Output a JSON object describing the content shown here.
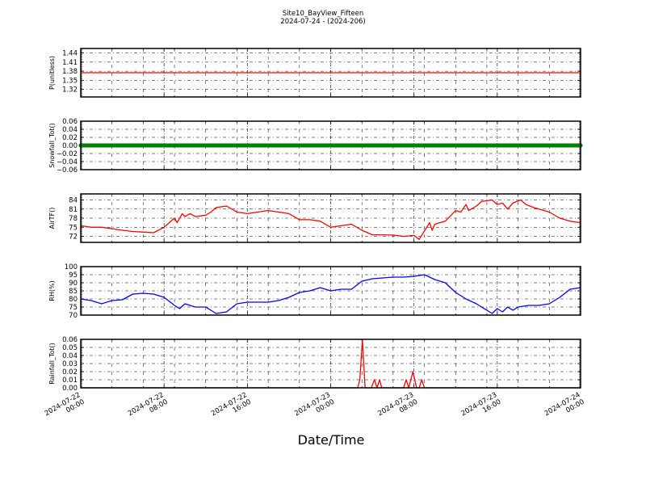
{
  "chart_data": {
    "type": "line",
    "title": "Site10_BayView_Fifteen",
    "subtitle": "2024-07-24 - (2024-206)",
    "xlabel": "Date/Time",
    "xlim": [
      "2024-07-22 00:00",
      "2024-07-24 00:00"
    ],
    "x_ticks": [
      {
        "date": "2024-07-22",
        "time": "00:00",
        "at": "2024-07-22 00:00"
      },
      {
        "date": "2024-07-22",
        "time": "08:00",
        "at": "2024-07-22 08:00"
      },
      {
        "date": "2024-07-22",
        "time": "16:00",
        "at": "2024-07-22 16:00"
      },
      {
        "date": "2024-07-23",
        "time": "00:00",
        "at": "2024-07-23 00:00"
      },
      {
        "date": "2024-07-23",
        "time": "08:00",
        "at": "2024-07-23 08:00"
      },
      {
        "date": "2024-07-23",
        "time": "16:00",
        "at": "2024-07-23 16:00"
      },
      {
        "date": "2024-07-24",
        "time": "00:00",
        "at": "2024-07-24 00:00"
      }
    ],
    "grid": true,
    "panels": [
      {
        "ylabel": "P(unitless)",
        "color": "#ff0000",
        "ylim": [
          1.295,
          1.455
        ],
        "yticks": [
          "1.32",
          "1.35",
          "1.38",
          "1.41",
          "1.44"
        ],
        "points": [
          [
            "2024-07-22 00:00",
            1.375
          ],
          [
            "2024-07-24 00:00",
            1.375
          ]
        ]
      },
      {
        "ylabel": "Snowfall_Tot()",
        "color": "#008000",
        "ylim": [
          -0.06,
          0.06
        ],
        "markers": true,
        "yticks": [
          "−0.06",
          "−0.04",
          "−0.02",
          "0.00",
          "0.02",
          "0.04",
          "0.06"
        ],
        "points": [
          [
            "2024-07-22 00:00",
            0
          ],
          [
            "2024-07-24 00:00",
            0
          ]
        ]
      },
      {
        "ylabel": "AirTF()",
        "color": "#ff0000",
        "ylim": [
          70,
          86
        ],
        "yticks": [
          "72",
          "75",
          "78",
          "81",
          "84"
        ],
        "points": [
          [
            "2024-07-22 00:00",
            75.5
          ],
          [
            "2024-07-22 01:00",
            75
          ],
          [
            "2024-07-22 02:00",
            75
          ],
          [
            "2024-07-22 03:00",
            74.5
          ],
          [
            "2024-07-22 04:00",
            74
          ],
          [
            "2024-07-22 05:00",
            73.6
          ],
          [
            "2024-07-22 06:00",
            73.4
          ],
          [
            "2024-07-22 07:00",
            73.2
          ],
          [
            "2024-07-22 08:00",
            75
          ],
          [
            "2024-07-22 08:30",
            76.5
          ],
          [
            "2024-07-22 09:00",
            78
          ],
          [
            "2024-07-22 09:15",
            76.5
          ],
          [
            "2024-07-22 09:45",
            79.5
          ],
          [
            "2024-07-22 10:00",
            78.5
          ],
          [
            "2024-07-22 10:30",
            79.5
          ],
          [
            "2024-07-22 11:00",
            78.5
          ],
          [
            "2024-07-22 12:00",
            79
          ],
          [
            "2024-07-22 12:30",
            80
          ],
          [
            "2024-07-22 13:00",
            81.5
          ],
          [
            "2024-07-22 14:00",
            82
          ],
          [
            "2024-07-22 15:00",
            80
          ],
          [
            "2024-07-22 16:00",
            79.5
          ],
          [
            "2024-07-22 17:00",
            80
          ],
          [
            "2024-07-22 18:00",
            80.5
          ],
          [
            "2024-07-22 19:00",
            80
          ],
          [
            "2024-07-22 20:00",
            79.5
          ],
          [
            "2024-07-22 21:00",
            77.5
          ],
          [
            "2024-07-22 22:00",
            77.5
          ],
          [
            "2024-07-22 23:00",
            77
          ],
          [
            "2024-07-23 00:00",
            75
          ],
          [
            "2024-07-23 01:00",
            75.5
          ],
          [
            "2024-07-23 02:00",
            76
          ],
          [
            "2024-07-23 03:00",
            74
          ],
          [
            "2024-07-23 04:00",
            72.5
          ],
          [
            "2024-07-23 05:00",
            72.5
          ],
          [
            "2024-07-23 06:00",
            72.4
          ],
          [
            "2024-07-23 07:00",
            72
          ],
          [
            "2024-07-23 08:00",
            72.3
          ],
          [
            "2024-07-23 08:30",
            71
          ],
          [
            "2024-07-23 09:30",
            76.5
          ],
          [
            "2024-07-23 09:45",
            74
          ],
          [
            "2024-07-23 10:00",
            76
          ],
          [
            "2024-07-23 11:00",
            77
          ],
          [
            "2024-07-23 12:00",
            80.5
          ],
          [
            "2024-07-23 12:30",
            80
          ],
          [
            "2024-07-23 13:00",
            82.5
          ],
          [
            "2024-07-23 13:15",
            80.5
          ],
          [
            "2024-07-23 14:00",
            82
          ],
          [
            "2024-07-23 14:30",
            83.5
          ],
          [
            "2024-07-23 15:30",
            84
          ],
          [
            "2024-07-23 16:00",
            82.5
          ],
          [
            "2024-07-23 16:30",
            83
          ],
          [
            "2024-07-23 17:00",
            81
          ],
          [
            "2024-07-23 17:30",
            83
          ],
          [
            "2024-07-23 18:15",
            84
          ],
          [
            "2024-07-23 18:45",
            82.5
          ],
          [
            "2024-07-23 19:30",
            81.5
          ],
          [
            "2024-07-23 20:00",
            81
          ],
          [
            "2024-07-23 21:00",
            80
          ],
          [
            "2024-07-23 22:00",
            78
          ],
          [
            "2024-07-23 23:00",
            77
          ],
          [
            "2024-07-24 00:00",
            76.5
          ]
        ]
      },
      {
        "ylabel": "RH(%)",
        "color": "#0000ff",
        "ylim": [
          70,
          100
        ],
        "yticks": [
          "70",
          "75",
          "80",
          "85",
          "90",
          "95",
          "100"
        ],
        "points": [
          [
            "2024-07-22 00:00",
            80
          ],
          [
            "2024-07-22 01:00",
            79
          ],
          [
            "2024-07-22 02:00",
            77
          ],
          [
            "2024-07-22 03:00",
            79
          ],
          [
            "2024-07-22 04:00",
            79.5
          ],
          [
            "2024-07-22 05:00",
            83
          ],
          [
            "2024-07-22 06:00",
            83.5
          ],
          [
            "2024-07-22 07:00",
            83
          ],
          [
            "2024-07-22 08:00",
            81
          ],
          [
            "2024-07-22 09:00",
            76
          ],
          [
            "2024-07-22 09:30",
            74
          ],
          [
            "2024-07-22 10:00",
            77
          ],
          [
            "2024-07-22 11:00",
            75
          ],
          [
            "2024-07-22 12:00",
            75
          ],
          [
            "2024-07-22 12:30",
            73
          ],
          [
            "2024-07-22 13:00",
            71
          ],
          [
            "2024-07-22 14:00",
            72
          ],
          [
            "2024-07-22 15:00",
            77
          ],
          [
            "2024-07-22 16:00",
            78
          ],
          [
            "2024-07-22 17:00",
            78
          ],
          [
            "2024-07-22 18:00",
            78
          ],
          [
            "2024-07-22 19:00",
            79
          ],
          [
            "2024-07-22 20:00",
            81
          ],
          [
            "2024-07-22 21:00",
            84
          ],
          [
            "2024-07-22 22:00",
            85
          ],
          [
            "2024-07-22 23:00",
            87
          ],
          [
            "2024-07-23 00:00",
            85
          ],
          [
            "2024-07-23 01:00",
            86
          ],
          [
            "2024-07-23 02:00",
            86
          ],
          [
            "2024-07-23 03:00",
            91
          ],
          [
            "2024-07-23 04:00",
            92.5
          ],
          [
            "2024-07-23 05:00",
            93
          ],
          [
            "2024-07-23 06:00",
            93.5
          ],
          [
            "2024-07-23 07:00",
            93.5
          ],
          [
            "2024-07-23 08:00",
            94
          ],
          [
            "2024-07-23 09:00",
            95
          ],
          [
            "2024-07-23 10:00",
            92
          ],
          [
            "2024-07-23 11:00",
            90
          ],
          [
            "2024-07-23 12:00",
            84
          ],
          [
            "2024-07-23 13:00",
            80
          ],
          [
            "2024-07-23 14:00",
            77
          ],
          [
            "2024-07-23 15:00",
            73
          ],
          [
            "2024-07-23 15:30",
            71
          ],
          [
            "2024-07-23 16:00",
            74
          ],
          [
            "2024-07-23 16:30",
            72
          ],
          [
            "2024-07-23 17:00",
            75
          ],
          [
            "2024-07-23 17:30",
            73
          ],
          [
            "2024-07-23 18:00",
            75
          ],
          [
            "2024-07-23 19:00",
            76
          ],
          [
            "2024-07-23 20:00",
            76
          ],
          [
            "2024-07-23 21:00",
            77
          ],
          [
            "2024-07-23 22:00",
            81
          ],
          [
            "2024-07-23 23:00",
            86
          ],
          [
            "2024-07-24 00:00",
            87
          ]
        ]
      },
      {
        "ylabel": "Rainfall_Tot()",
        "color": "#ff0000",
        "ylim": [
          0,
          0.06
        ],
        "yticks": [
          "0.00",
          "0.01",
          "0.02",
          "0.03",
          "0.04",
          "0.05",
          "0.06"
        ],
        "points": [
          [
            "2024-07-22 00:00",
            0
          ],
          [
            "2024-07-23 02:36",
            0
          ],
          [
            "2024-07-23 02:48",
            0.01
          ],
          [
            "2024-07-23 03:03",
            0.06
          ],
          [
            "2024-07-23 03:18",
            0
          ],
          [
            "2024-07-23 03:54",
            0
          ],
          [
            "2024-07-23 04:12",
            0.01
          ],
          [
            "2024-07-23 04:27",
            0
          ],
          [
            "2024-07-23 04:42",
            0.01
          ],
          [
            "2024-07-23 04:54",
            0
          ],
          [
            "2024-07-23 07:00",
            0
          ],
          [
            "2024-07-23 07:15",
            0.01
          ],
          [
            "2024-07-23 07:30",
            0
          ],
          [
            "2024-07-23 07:54",
            0.02
          ],
          [
            "2024-07-23 08:15",
            0
          ],
          [
            "2024-07-23 08:30",
            0
          ],
          [
            "2024-07-23 08:45",
            0.01
          ],
          [
            "2024-07-23 09:00",
            0
          ],
          [
            "2024-07-24 00:00",
            0
          ]
        ]
      }
    ]
  }
}
